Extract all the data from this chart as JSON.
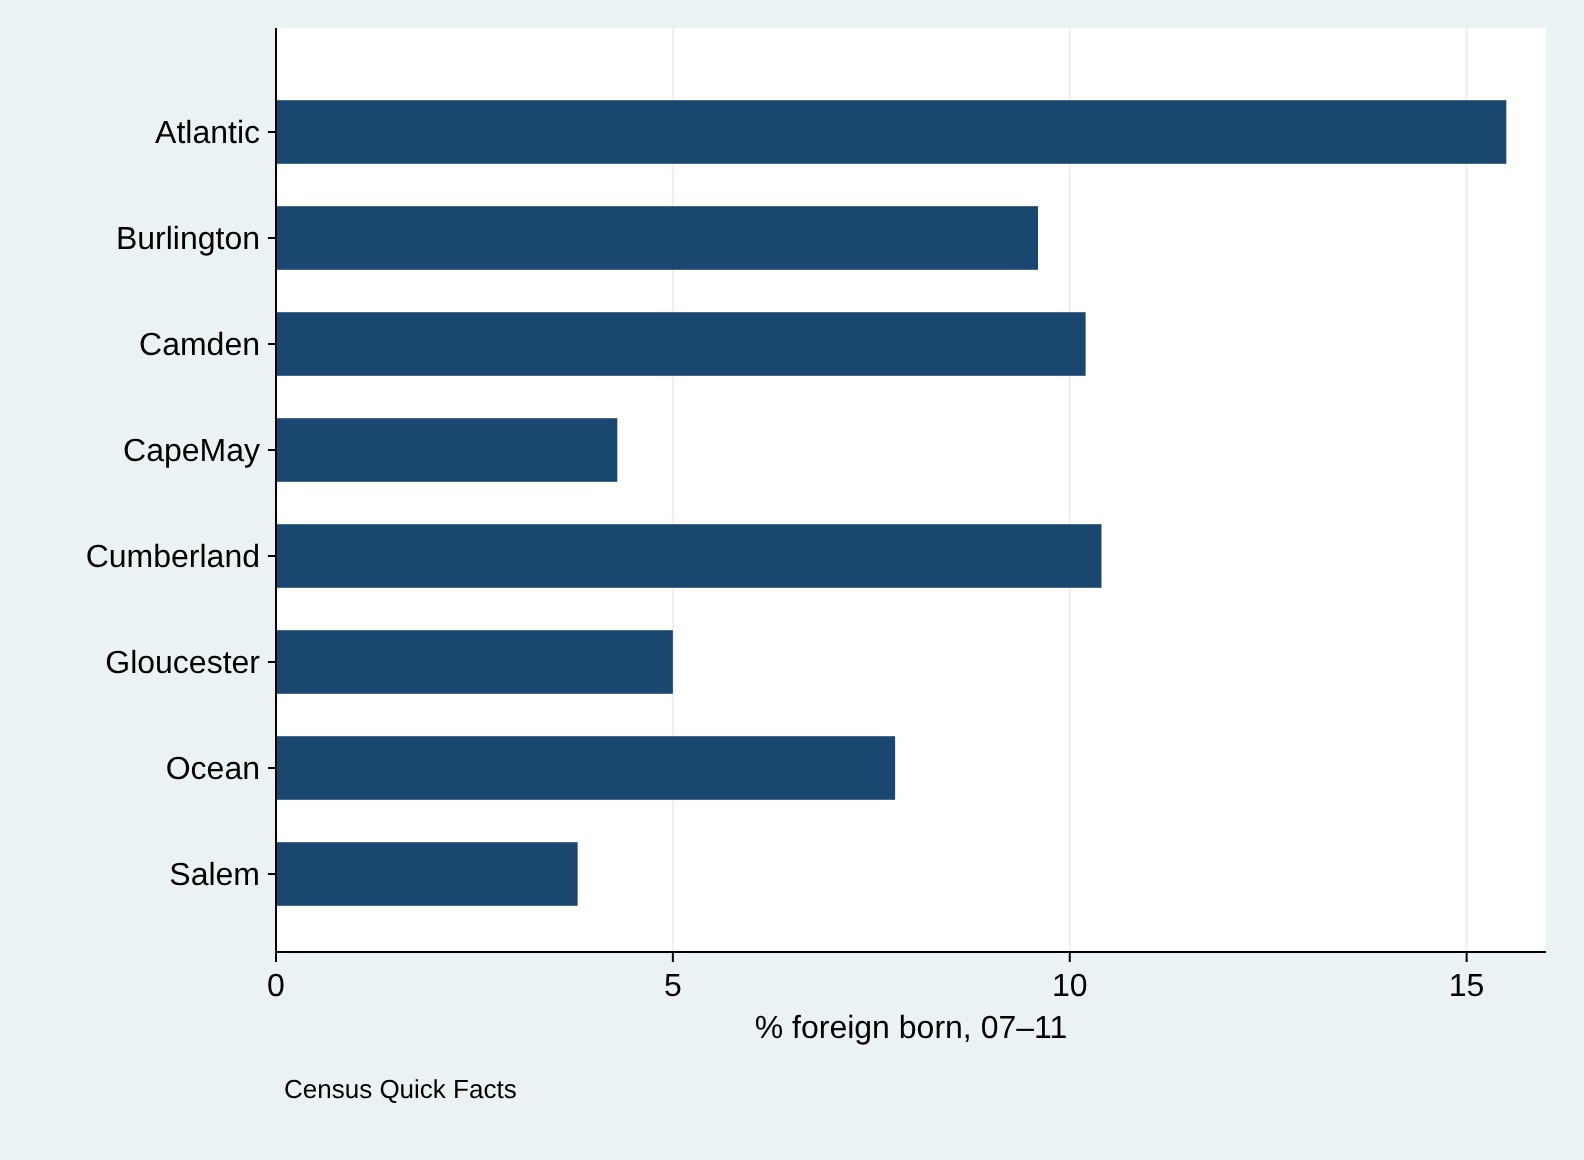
{
  "chart_data": {
    "type": "bar",
    "orientation": "horizontal",
    "xlabel": "% foreign born, 07–11",
    "annotations": [
      "Census Quick Facts"
    ],
    "categories": [
      "Atlantic",
      "Burlington",
      "Camden",
      "CapeMay",
      "Cumberland",
      "Gloucester",
      "Ocean",
      "Salem"
    ],
    "values": [
      15.5,
      9.6,
      10.2,
      4.3,
      10.4,
      5.0,
      7.8,
      3.8
    ],
    "color": "#1a476f",
    "xlim": [
      0,
      16
    ],
    "xticks": [
      0,
      5,
      10,
      15
    ],
    "grid": "x"
  }
}
